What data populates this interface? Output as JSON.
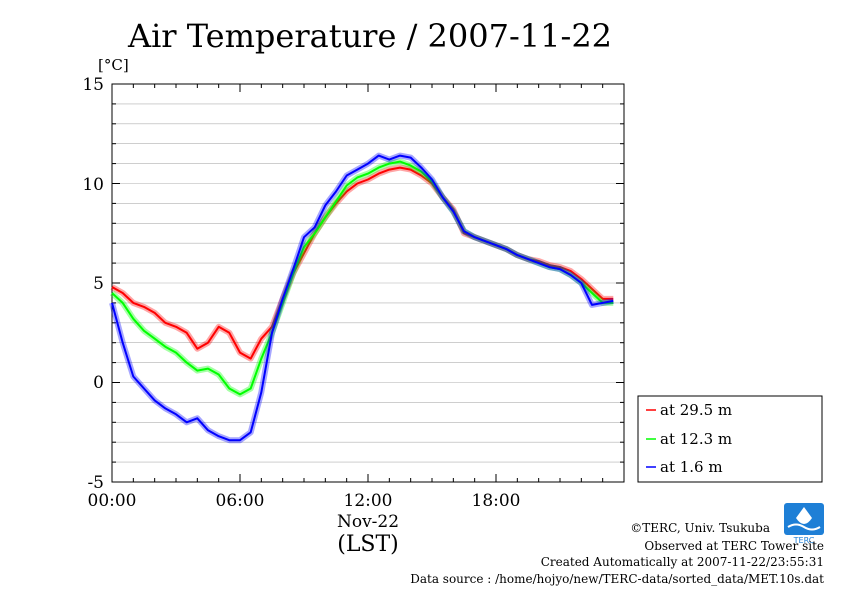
{
  "chart_data": {
    "type": "line",
    "title": "Air Temperature / 2007-11-22",
    "y_unit": "[°C]",
    "ylim": [
      -5,
      15
    ],
    "y_ticks": [
      "15",
      "10",
      "5",
      "0",
      "-5"
    ],
    "x_ticks": [
      "00:00",
      "06:00",
      "12:00",
      "18:00"
    ],
    "x_date": "Nov-22",
    "xlabel": "(LST)",
    "grid": true,
    "legend_position": "right",
    "x": [
      0,
      0.5,
      1,
      1.5,
      2,
      2.5,
      3,
      3.5,
      4,
      4.5,
      5,
      5.5,
      6,
      6.5,
      7,
      7.5,
      8,
      8.5,
      9,
      9.5,
      10,
      10.5,
      11,
      11.5,
      12,
      12.5,
      13,
      13.5,
      14,
      14.5,
      15,
      15.5,
      16,
      16.5,
      17,
      17.5,
      18,
      18.5,
      19,
      19.5,
      20,
      20.5,
      21,
      21.5,
      22,
      22.5,
      23,
      23.5
    ],
    "series": [
      {
        "name": "at 29.5 m",
        "color": "#ff0000",
        "values": [
          4.8,
          4.5,
          4.0,
          3.8,
          3.5,
          3.0,
          2.8,
          2.5,
          1.7,
          2.0,
          2.8,
          2.5,
          1.5,
          1.2,
          2.2,
          2.8,
          4.2,
          5.5,
          6.5,
          7.5,
          8.3,
          9.0,
          9.6,
          10.0,
          10.2,
          10.5,
          10.7,
          10.8,
          10.7,
          10.4,
          10.0,
          9.3,
          8.7,
          7.5,
          7.3,
          7.1,
          6.9,
          6.7,
          6.4,
          6.2,
          6.1,
          5.9,
          5.8,
          5.6,
          5.2,
          4.7,
          4.2,
          4.2
        ]
      },
      {
        "name": "at 12.3 m",
        "color": "#00ff00",
        "values": [
          4.5,
          4.0,
          3.2,
          2.6,
          2.2,
          1.8,
          1.5,
          1.0,
          0.6,
          0.7,
          0.4,
          -0.3,
          -0.6,
          -0.3,
          1.2,
          2.5,
          4.0,
          5.5,
          6.8,
          7.5,
          8.3,
          9.1,
          9.9,
          10.3,
          10.5,
          10.8,
          11.0,
          11.1,
          10.9,
          10.6,
          10.1,
          9.3,
          8.6,
          7.6,
          7.3,
          7.1,
          6.9,
          6.7,
          6.4,
          6.2,
          6.0,
          5.8,
          5.7,
          5.4,
          5.0,
          4.5,
          4.0,
          4.0
        ]
      },
      {
        "name": "at 1.6 m",
        "color": "#0000ff",
        "values": [
          4.0,
          2.0,
          0.3,
          -0.3,
          -0.9,
          -1.3,
          -1.6,
          -2.0,
          -1.8,
          -2.4,
          -2.7,
          -2.9,
          -2.9,
          -2.5,
          -0.5,
          2.5,
          4.2,
          5.7,
          7.3,
          7.8,
          8.9,
          9.6,
          10.4,
          10.7,
          11.0,
          11.4,
          11.2,
          11.4,
          11.3,
          10.8,
          10.2,
          9.3,
          8.6,
          7.6,
          7.3,
          7.1,
          6.9,
          6.7,
          6.4,
          6.2,
          6.0,
          5.8,
          5.7,
          5.4,
          5.0,
          3.9,
          4.0,
          4.1
        ]
      }
    ]
  },
  "credits": {
    "copyright": "©TERC, Univ. Tsukuba",
    "observed": "Observed at TERC Tower site",
    "created": "Created Automatically at 2007-11-22/23:55:31",
    "source": "Data source : /home/hojyo/new/TERC-data/sorted_data/MET.10s.dat"
  },
  "logo": {
    "text": "TERC",
    "color": "#1e7fd6",
    "icon": "terc-logo-icon"
  }
}
